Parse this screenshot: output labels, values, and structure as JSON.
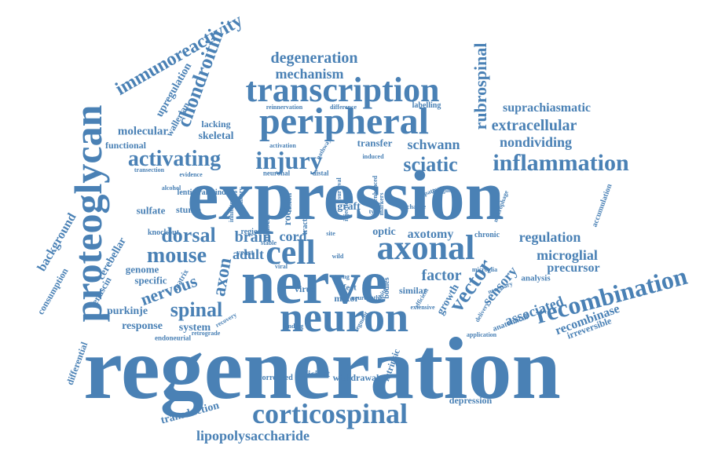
{
  "color": "#4a81b5",
  "words": [
    "regeneration",
    "expression",
    "nerve",
    "neuron",
    "proteoglycan",
    "peripheral",
    "transcription",
    "axonal",
    "cell",
    "corticospinal",
    "recombination",
    "immunoreactivity",
    "injury",
    "inflammation",
    "activating",
    "vector",
    "chondroitin",
    "sciatic",
    "mouse",
    "dorsal",
    "spinal",
    "axon",
    "nervous",
    "rubrospinal",
    "extracellular",
    "schwann",
    "nondividing",
    "degeneration",
    "mechanism",
    "suprachiasmatic",
    "regulation",
    "microglial",
    "precursor",
    "associated",
    "recombinase",
    "factor",
    "sensory",
    "axotomy",
    "lipopolysaccharide",
    "background",
    "proteins",
    "brain",
    "cord",
    "adult",
    "molecular",
    "skeletal",
    "lacking",
    "functional",
    "upregulation",
    "wallerian",
    "cerebellar",
    "tenascin",
    "genome",
    "specific",
    "purkinje",
    "response",
    "system",
    "transduction",
    "consumption",
    "differential",
    "endoneurial",
    "sulfate",
    "stump",
    "lentiviral",
    "induce",
    "knockout",
    "transfer",
    "neuronal",
    "distal",
    "virus",
    "effect",
    "motor",
    "intrinsic",
    "deficient",
    "correlated",
    "withdrawal",
    "depression",
    "analysis",
    "accumulation",
    "irreversible",
    "application",
    "anatomical",
    "optic",
    "graft",
    "tract",
    "root",
    "muscle",
    "lesion",
    "region",
    "yeast",
    "matrix",
    "growth",
    "similar",
    "chronic",
    "labelling",
    "reinnervation",
    "difference",
    "activation",
    "transection",
    "alcohol",
    "microglia",
    "macrophage",
    "ganglion",
    "induced",
    "bodies",
    "strong",
    "finding",
    "retrograde",
    "recovery",
    "site",
    "viral",
    "white",
    "change",
    "type",
    "wild",
    "efficient",
    "delivery",
    "necessary",
    "pattern",
    "evidence",
    "primary",
    "stable",
    "inhibitor",
    "pathway",
    "survival",
    "injection",
    "markers",
    "neuropathic",
    "segment",
    "extensive",
    "enhanced",
    "distance"
  ]
}
